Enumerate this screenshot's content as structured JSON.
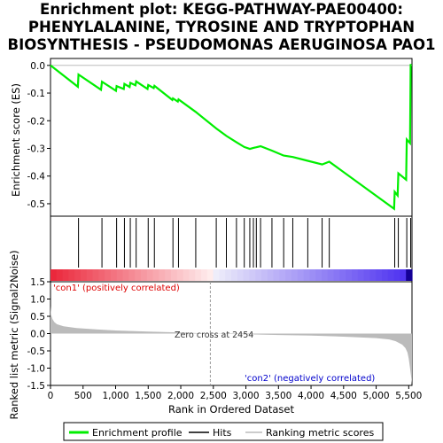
{
  "title_lines": [
    "Enrichment plot: KEGG-PATHWAY-PAE00400:",
    "PHENYLALANINE, TYROSINE AND TRYPTOPHAN",
    "BIOSYNTHESIS - PSEUDOMONAS AERUGINOSA PAO1"
  ],
  "colors": {
    "enrichment_line": "#00ee00",
    "hits": "#000000",
    "metric_fill": "#bbbbbb",
    "positive_label": "#dd0000",
    "negative_label": "#0000cc"
  },
  "legend": {
    "items": [
      {
        "label": "Enrichment profile",
        "icon": "green-line-icon"
      },
      {
        "label": "Hits",
        "icon": "black-line-icon"
      },
      {
        "label": "Ranking metric scores",
        "icon": "gray-line-icon"
      }
    ]
  },
  "annotations": {
    "zero_cross": "Zero cross at 2454",
    "positive": "'con1' (positively correlated)",
    "negative": "'con2' (negatively correlated)"
  },
  "chart_data": [
    {
      "type": "line",
      "name": "enrichment-profile",
      "ylabel": "Enrichment score (ES)",
      "xlim": [
        0,
        5550
      ],
      "ylim": [
        -0.545,
        0.025
      ],
      "yticks": [
        0.0,
        -0.1,
        -0.2,
        -0.3,
        -0.4,
        -0.5
      ],
      "ytick_labels": [
        "0.0",
        "-0.1",
        "-0.2",
        "-0.3",
        "-0.4",
        "-0.5"
      ],
      "grid": false,
      "x": [
        0,
        420,
        430,
        775,
        790,
        1005,
        1015,
        1125,
        1135,
        1215,
        1225,
        1305,
        1315,
        1490,
        1500,
        1585,
        1595,
        1870,
        1880,
        1955,
        1965,
        2230,
        2545,
        2700,
        2855,
        2975,
        3060,
        3115,
        3160,
        3225,
        3400,
        3580,
        3720,
        3950,
        4170,
        4280,
        5275,
        5285,
        5330,
        5340,
        5460,
        5470,
        5520,
        5530
      ],
      "y": [
        0.0,
        -0.077,
        -0.033,
        -0.088,
        -0.059,
        -0.092,
        -0.075,
        -0.085,
        -0.067,
        -0.078,
        -0.063,
        -0.072,
        -0.058,
        -0.085,
        -0.071,
        -0.082,
        -0.074,
        -0.125,
        -0.119,
        -0.131,
        -0.123,
        -0.168,
        -0.228,
        -0.255,
        -0.278,
        -0.295,
        -0.302,
        -0.298,
        -0.296,
        -0.292,
        -0.308,
        -0.326,
        -0.331,
        -0.345,
        -0.358,
        -0.348,
        -0.518,
        -0.457,
        -0.47,
        -0.39,
        -0.413,
        -0.268,
        -0.281,
        0.005
      ]
    },
    {
      "type": "scatter",
      "name": "hits",
      "xlim": [
        0,
        5550
      ],
      "x": [
        430,
        790,
        1015,
        1135,
        1225,
        1315,
        1500,
        1595,
        1880,
        1965,
        2230,
        2545,
        2700,
        2855,
        2975,
        3060,
        3115,
        3160,
        3225,
        3400,
        3580,
        3720,
        3950,
        4170,
        4280,
        5285,
        5340,
        5470,
        5530
      ]
    },
    {
      "type": "area",
      "name": "ranking-metric",
      "xlabel": "Rank in Ordered Dataset",
      "ylabel": "Ranked list metric (Signal2Noise)",
      "xlim": [
        0,
        5550
      ],
      "ylim": [
        -1.5,
        1.5
      ],
      "xticks": [
        0,
        500,
        1000,
        1500,
        2000,
        2500,
        3000,
        3500,
        4000,
        4500,
        5000,
        5500
      ],
      "xtick_labels": [
        "0",
        "500",
        "1,000",
        "1,500",
        "2,000",
        "2,500",
        "3,000",
        "3,500",
        "4,000",
        "4,500",
        "5,000",
        "5,500"
      ],
      "yticks": [
        1.5,
        1.0,
        0.5,
        0.0,
        -0.5,
        -1.0,
        -1.5
      ],
      "ytick_labels": [
        "1.5",
        "1.0",
        "0.5",
        "0.0",
        "-0.5",
        "-1.0",
        "-1.5"
      ],
      "zero_cross": 2454,
      "x": [
        0,
        10,
        30,
        60,
        100,
        200,
        400,
        700,
        1000,
        1500,
        2000,
        2454,
        3000,
        3500,
        4000,
        4500,
        5000,
        5200,
        5300,
        5400,
        5450,
        5480,
        5500,
        5520,
        5540,
        5550
      ],
      "values": [
        0.8,
        0.55,
        0.42,
        0.33,
        0.27,
        0.21,
        0.16,
        0.12,
        0.09,
        0.06,
        0.03,
        0.0,
        -0.02,
        -0.04,
        -0.06,
        -0.09,
        -0.13,
        -0.17,
        -0.22,
        -0.32,
        -0.42,
        -0.55,
        -0.72,
        -1.0,
        -1.3,
        -1.45
      ]
    }
  ]
}
